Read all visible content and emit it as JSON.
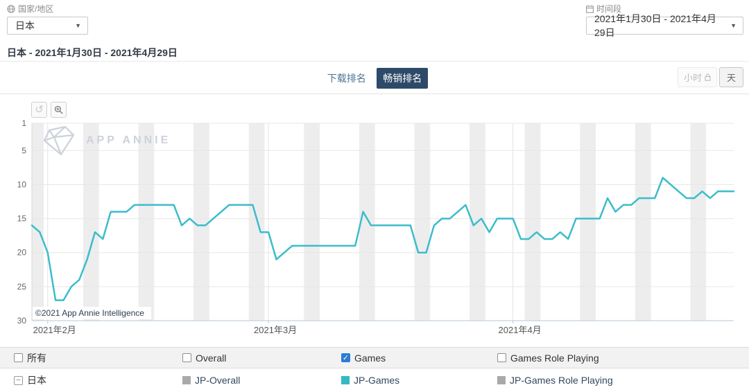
{
  "filters": {
    "country": {
      "label": "国家/地区",
      "value": "日本"
    },
    "period": {
      "label": "时间段",
      "value": "2021年1月30日 - 2021年4月29日"
    }
  },
  "subtitle": "日本 - 2021年1月30日 - 2021年4月29日",
  "tabs": {
    "download": "下载排名",
    "revenue": "畅销排名"
  },
  "granularity": {
    "hour": "小时",
    "day": "天"
  },
  "watermark": "APP ANNIE",
  "chart_data": {
    "type": "line",
    "title": "畅销排名 - 日本 - Games daily rank",
    "x_start_date": "2021-01-30",
    "x_end_date": "2021-04-29",
    "y_inverted": true,
    "ylim": [
      1,
      30
    ],
    "yticks": [
      1,
      5,
      10,
      15,
      20,
      25,
      30
    ],
    "month_labels": [
      {
        "label": "2021年2月",
        "day_index": 2
      },
      {
        "label": "2021年3月",
        "day_index": 30
      },
      {
        "label": "2021年4月",
        "day_index": 61
      }
    ],
    "weekend_first_saturday_index": 0,
    "copyright": "©2021 App Annie Intelligence",
    "grid_color": "#e7e7e7",
    "month_line_color": "#e3e3e3",
    "weekend_band_color": "#ededee",
    "axis_color": "#b9c9d6",
    "tick_label_color": "#666666",
    "series": [
      {
        "name": "JP-Games",
        "color": "#3bbccb",
        "values": [
          16,
          17,
          20,
          27,
          27,
          25,
          24,
          21,
          17,
          18,
          14,
          14,
          14,
          13,
          13,
          13,
          13,
          13,
          13,
          16,
          15,
          16,
          16,
          15,
          14,
          13,
          13,
          13,
          13,
          17,
          17,
          21,
          20,
          19,
          19,
          19,
          19,
          19,
          19,
          19,
          19,
          19,
          14,
          16,
          16,
          16,
          16,
          16,
          16,
          20,
          20,
          16,
          15,
          15,
          14,
          13,
          16,
          15,
          17,
          15,
          15,
          15,
          18,
          18,
          17,
          18,
          18,
          17,
          18,
          15,
          15,
          15,
          15,
          12,
          14,
          13,
          13,
          12,
          12,
          12,
          9,
          10,
          11,
          12,
          12,
          11,
          12,
          11,
          11,
          11
        ]
      }
    ]
  },
  "legend": {
    "header": [
      {
        "label": "所有",
        "checked": false
      },
      {
        "label": "Overall",
        "checked": false
      },
      {
        "label": "Games",
        "checked": true
      },
      {
        "label": "Games Role Playing",
        "checked": false
      }
    ],
    "region_row": {
      "region": "日本",
      "items": [
        {
          "label": "JP-Overall",
          "color": "#a9a9a9"
        },
        {
          "label": "JP-Games",
          "color": "#35b9c5"
        },
        {
          "label": "JP-Games Role Playing",
          "color": "#a9a9a9"
        }
      ]
    }
  }
}
